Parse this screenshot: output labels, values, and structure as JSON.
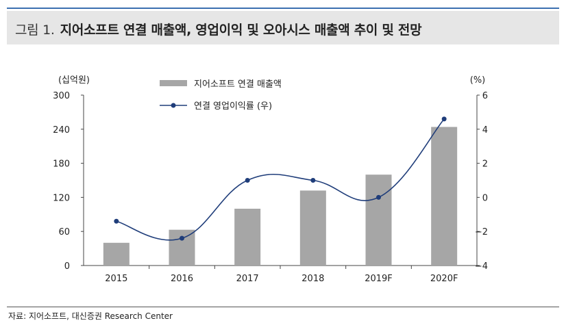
{
  "title": {
    "figure_no": "그림 1.",
    "text": "지어소프트 연결 매출액, 영업이익 및 오아시스 매출액 추이 및 전망"
  },
  "source": "자료: 지어소프트, 대신증권 Research Center",
  "colors": {
    "bar": "#a6a6a6",
    "line": "#1f3d7a",
    "rule": "#3b6fb0"
  },
  "chart_data": {
    "type": "bar",
    "categories": [
      "2015",
      "2016",
      "2017",
      "2018",
      "2019F",
      "2020F"
    ],
    "y_left_unit": "(십억원)",
    "y_right_unit": "(%)",
    "y_left_ticks": [
      "0",
      "60",
      "120",
      "180",
      "240",
      "300"
    ],
    "y_right_ticks": [
      "−4",
      "−2",
      "0",
      "2",
      "4",
      "6"
    ],
    "ylim_left": [
      0,
      300
    ],
    "ylim_right": [
      -4,
      6
    ],
    "series": [
      {
        "name": "지어소프트 연결 매출액",
        "type": "bar",
        "axis": "left",
        "values": [
          40,
          63,
          100,
          132,
          160,
          244
        ]
      },
      {
        "name": "연결 영업이익률 (우)",
        "type": "line",
        "axis": "right",
        "values": [
          -1.4,
          -2.4,
          1.0,
          1.0,
          0.0,
          4.6
        ]
      }
    ],
    "legend": [
      "지어소프트 연결 매출액",
      "연결 영업이익률 (우)"
    ]
  }
}
